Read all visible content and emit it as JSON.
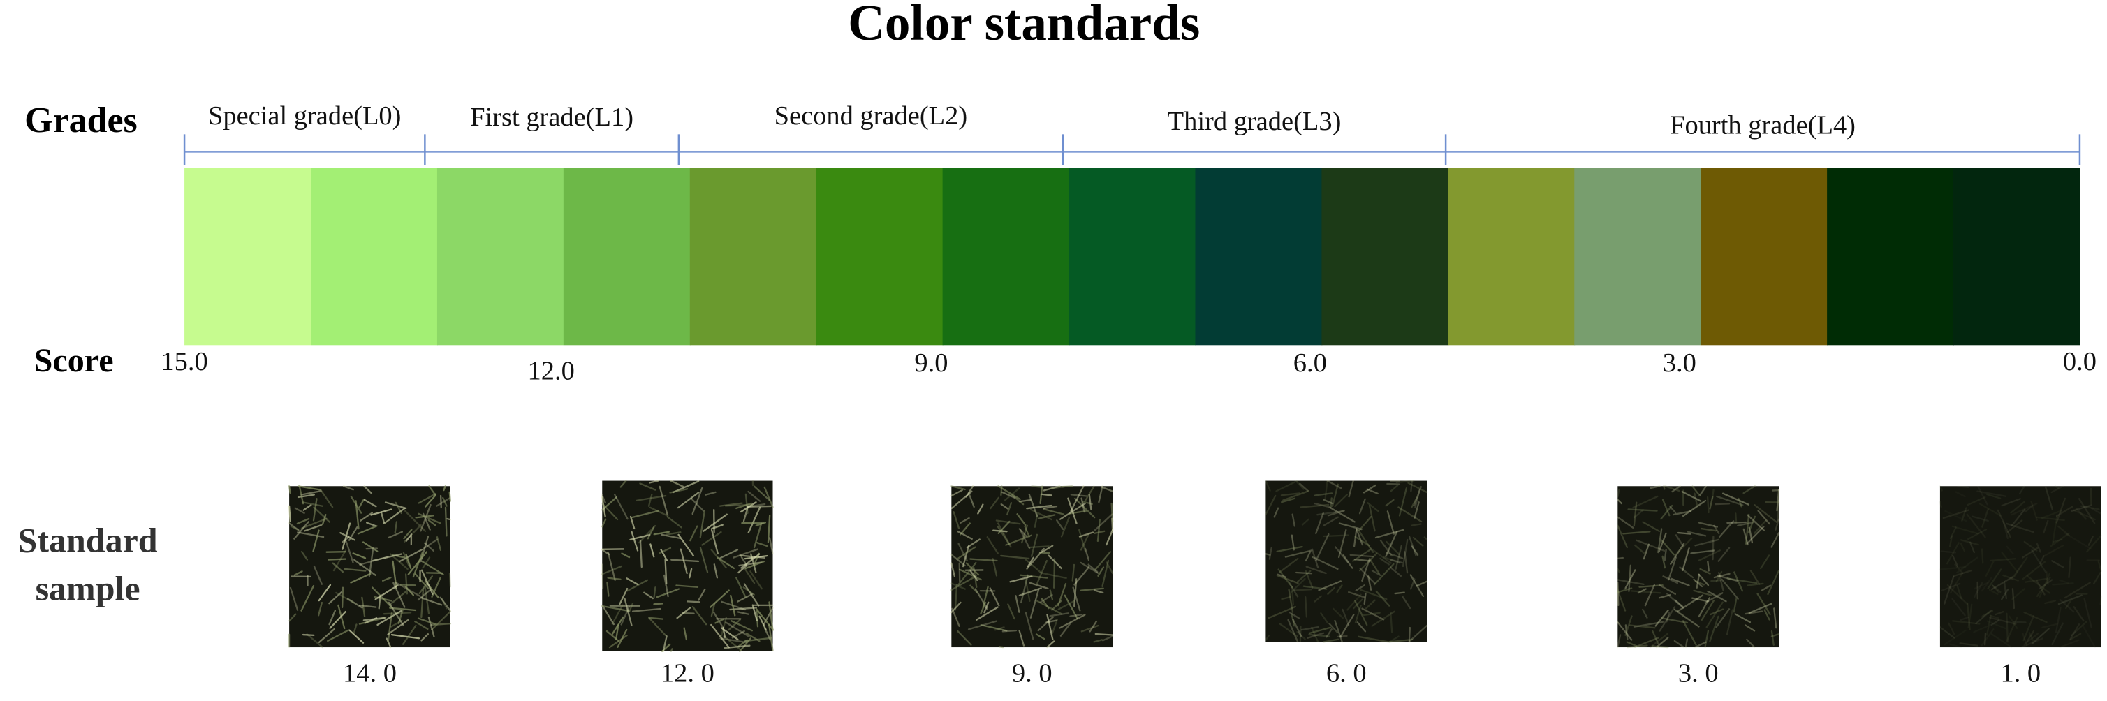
{
  "title": "Color standards",
  "row_labels": {
    "grades": "Grades",
    "score": "Score",
    "sample": [
      "Standard",
      "sample"
    ]
  },
  "grades": [
    "Special grade(L0)",
    "First grade(L1)",
    "Second grade(L2)",
    "Third grade(L3)",
    "Fourth grade(L4)"
  ],
  "swatches": [
    "#c6fb8f",
    "#a3ef74",
    "#8cd866",
    "#6db848",
    "#6a9a2e",
    "#3a8a10",
    "#176f12",
    "#055a24",
    "#023c34",
    "#1c3a17",
    "#83992f",
    "#789e6e",
    "#6e5a04",
    "#002c05",
    "#02260e"
  ],
  "scores": [
    "15.0",
    "12.0",
    "9.0",
    "6.0",
    "3.0",
    "0.0"
  ],
  "samples": [
    "14. 0",
    "12. 0",
    "9. 0",
    "6. 0",
    "3. 0",
    "1. 0"
  ]
}
